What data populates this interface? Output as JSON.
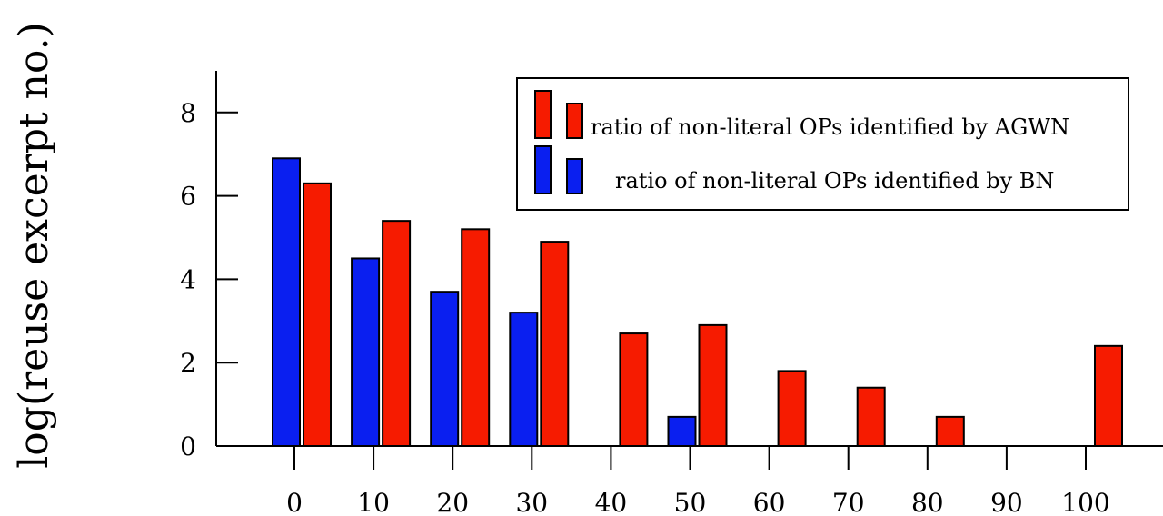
{
  "chart_data": {
    "type": "bar",
    "title": "",
    "xlabel": "",
    "ylabel": "log(reuse excerpt no.)",
    "categories": [
      "0",
      "10",
      "20",
      "30",
      "40",
      "50",
      "60",
      "70",
      "80",
      "90",
      "100"
    ],
    "ylim": [
      0,
      9
    ],
    "yticks": [
      "0",
      "2",
      "4",
      "6",
      "8"
    ],
    "grid": false,
    "legend_position": "top-right",
    "series": [
      {
        "name": "ratio of non-literal OPs identified by BN",
        "color": "#0a1ff0",
        "values": [
          6.9,
          4.5,
          3.7,
          3.2,
          null,
          0.7,
          null,
          null,
          null,
          null,
          null
        ]
      },
      {
        "name": "ratio of non-literal OPs identified by AGWN",
        "color": "#f61b00",
        "values": [
          6.3,
          5.4,
          5.2,
          4.9,
          2.7,
          2.9,
          1.8,
          1.4,
          0.7,
          null,
          2.4
        ]
      }
    ]
  }
}
